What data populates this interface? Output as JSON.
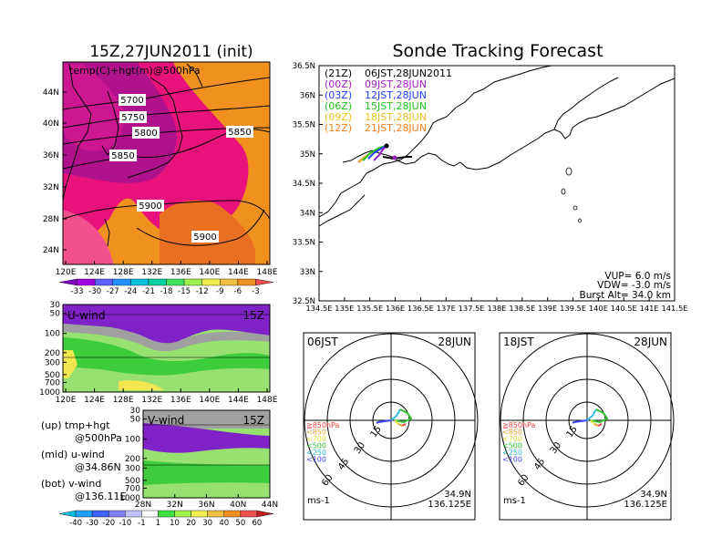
{
  "colors": {
    "orange": "#f0901e",
    "dark_orange": "#e87020",
    "magenta": "#e8127c",
    "pink": "#f0508c",
    "purple": "#7f22c8",
    "violet": "#9a40d8",
    "lgreen": "#98e070",
    "green": "#3ccc3c",
    "gray": "#a0a0a0",
    "dgreen": "#20a040",
    "yellow": "#f0e650",
    "c00": "#a020c0",
    "c03": "#2040ff",
    "c06": "#20c020",
    "c09": "#f0c020",
    "c12": "#f08020",
    "c21": "#000000"
  },
  "main_title": "Sonde Tracking Forecast",
  "left_title": "15Z,27JUN2011 (init)",
  "top_map": {
    "label": "temp(C)+hgt(m)@500hPa",
    "lat_labels": [
      "44N",
      "40N",
      "36N",
      "32N",
      "28N",
      "24N"
    ],
    "lon_labels": [
      "120E",
      "124E",
      "128E",
      "132E",
      "136E",
      "140E",
      "144E",
      "148E"
    ],
    "contours": [
      "5700",
      "5750",
      "5800",
      "5850",
      "5850",
      "5900",
      "5900"
    ]
  },
  "temp_colorbar": {
    "labels": [
      "-33",
      "-30",
      "-27",
      "-24",
      "-21",
      "-18",
      "-15",
      "-12",
      "-9",
      "-6",
      "-3"
    ],
    "colors": [
      "#8000c0",
      "#a000e0",
      "#6060ff",
      "#2090ff",
      "#00c0e0",
      "#00d0a0",
      "#40e060",
      "#a0f050",
      "#f0f050",
      "#f0c040",
      "#f09020",
      "#f05050"
    ]
  },
  "uwind": {
    "label": "U-wind",
    "time": "15Z",
    "y_labels": [
      "30",
      "50",
      "100",
      "200",
      "300",
      "500",
      "700",
      "1000"
    ],
    "x_labels": [
      "120E",
      "124E",
      "128E",
      "132E",
      "136E",
      "140E",
      "144E",
      "148E"
    ]
  },
  "vwind": {
    "label": "V-wind",
    "time": "15Z",
    "y_labels": [
      "30",
      "50",
      "100",
      "200",
      "300",
      "500",
      "700",
      "1000"
    ],
    "x_labels": [
      "28N",
      "32N",
      "36N",
      "40N",
      "44N"
    ]
  },
  "legend_text": {
    "up1": "(up)  tmp+hgt",
    "up2": "@500hPa",
    "mid1": "(mid)  u-wind",
    "mid2": "@34.86N",
    "bot1": "(bot)  v-wind",
    "bot2": "@136.11E"
  },
  "wind_colorbar": {
    "labels": [
      "-40",
      "-30",
      "-20",
      "-10",
      "-1",
      "1",
      "10",
      "20",
      "30",
      "40",
      "50",
      "60"
    ],
    "colors": [
      "#00c0e0",
      "#20a0ff",
      "#4060ff",
      "#8080ff",
      "#c0c0ff",
      "#ffffff",
      "#40e040",
      "#a0f050",
      "#f0f050",
      "#f0c040",
      "#f09020",
      "#f05050",
      "#c02020"
    ]
  },
  "track_map": {
    "lat_labels": [
      "36.5N",
      "36N",
      "35.5N",
      "35N",
      "34.5N",
      "34N",
      "33.5N",
      "33N",
      "32.5N"
    ],
    "lon_labels": [
      "134.5E",
      "135E",
      "135.5E",
      "136E",
      "136.5E",
      "137E",
      "137.5E",
      "138E",
      "138.5E",
      "139E",
      "139.5E",
      "140E",
      "140.5E",
      "141E",
      "141.5E"
    ],
    "launches": [
      {
        "code": "(21Z)",
        "time": "06JST,28JUN2011",
        "color": "#000000"
      },
      {
        "code": "(00Z)",
        "time": "09JST,28JUN",
        "color": "#a020c0"
      },
      {
        "code": "(03Z)",
        "time": "12JST,28JUN",
        "color": "#2040ff"
      },
      {
        "code": "(06Z)",
        "time": "15JST,28JUN",
        "color": "#20c020"
      },
      {
        "code": "(09Z)",
        "time": "18JST,28JUN",
        "color": "#f0c020"
      },
      {
        "code": "(12Z)",
        "time": "21JST,28JUN",
        "color": "#f08020"
      }
    ],
    "vup": "VUP=  6.0  m/s",
    "vdw": "VDW= -3.0  m/s",
    "burst": "Burst Alt=  34.0  km"
  },
  "hodo_left": {
    "time": "06JST",
    "date": "28JUN",
    "rings": [
      "15",
      "30",
      "45",
      "60"
    ],
    "levels": [
      {
        "text": "≧850hPa",
        "color": "#f04040"
      },
      {
        "text": "<850",
        "color": "#f0a030"
      },
      {
        "text": "<700",
        "color": "#e0e040"
      },
      {
        "text": "<500",
        "color": "#30c030"
      },
      {
        "text": "<250",
        "color": "#30c0e0"
      },
      {
        "text": "<100",
        "color": "#4040ff"
      }
    ],
    "unit": "ms-1",
    "lat": "34.9N",
    "lon": "136.125E"
  },
  "hodo_right": {
    "time": "18JST",
    "date": "28JUN",
    "rings": [
      "15",
      "30",
      "45",
      "60"
    ],
    "levels": [
      {
        "text": "≧850hPa",
        "color": "#f04040"
      },
      {
        "text": "<850",
        "color": "#f0a030"
      },
      {
        "text": "<700",
        "color": "#e0e040"
      },
      {
        "text": "<500",
        "color": "#30c030"
      },
      {
        "text": "<250",
        "color": "#30c0e0"
      },
      {
        "text": "<100",
        "color": "#4040ff"
      }
    ],
    "unit": "ms-1",
    "lat": "34.9N",
    "lon": "136.125E"
  }
}
